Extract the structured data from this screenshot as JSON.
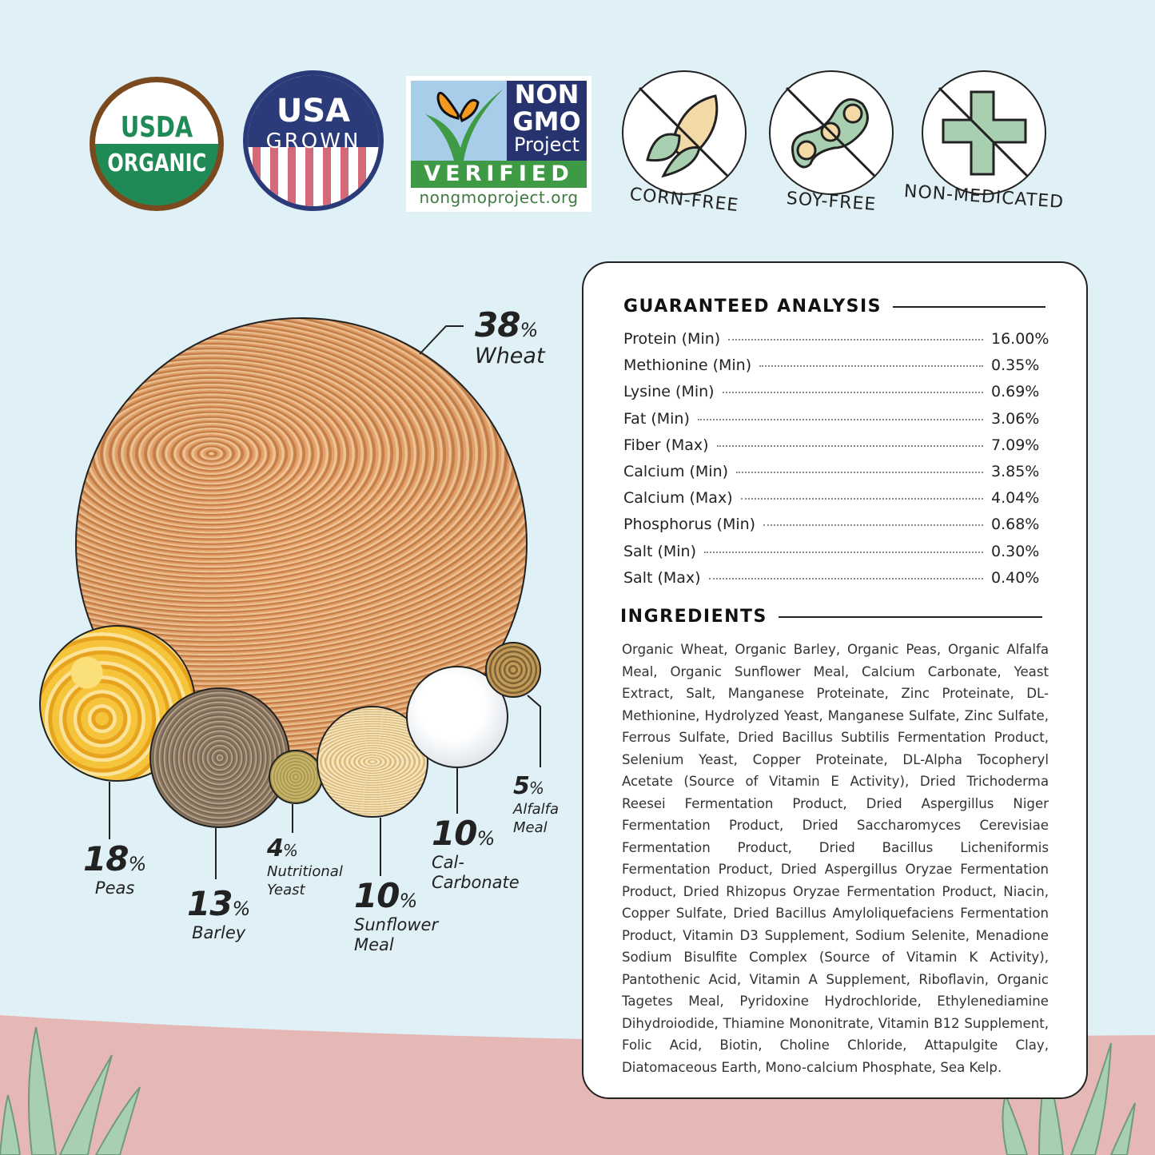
{
  "badges": {
    "usda": {
      "top": "USDA",
      "bottom": "ORGANIC"
    },
    "usa_grown": {
      "top": "USA",
      "bottom": "GROWN"
    },
    "non_gmo": {
      "line1": "NON",
      "line2": "GMO",
      "line3": "Project",
      "verified": "VERIFIED",
      "url": "nongmoproject.org"
    },
    "free_icons": [
      {
        "icon": "corn-icon",
        "label": "CORN-FREE"
      },
      {
        "icon": "soybean-icon",
        "label": "SOY-FREE"
      },
      {
        "icon": "medical-cross-icon",
        "label": "NON-MEDICATED"
      }
    ]
  },
  "composition": [
    {
      "name": "Wheat",
      "percent": "38"
    },
    {
      "name": "Peas",
      "percent": "18"
    },
    {
      "name": "Barley",
      "percent": "13"
    },
    {
      "name": "Nutritional Yeast",
      "percent": "4"
    },
    {
      "name": "Sunflower Meal",
      "percent": "10"
    },
    {
      "name": "Cal-Carbonate",
      "percent": "10"
    },
    {
      "name": "Alfalfa Meal",
      "percent": "5"
    }
  ],
  "percent_sign": "%",
  "analysis": {
    "title": "GUARANTEED ANALYSIS",
    "rows": [
      {
        "label": "Protein (Min)",
        "value": "16.00%"
      },
      {
        "label": "Methionine (Min)",
        "value": "0.35%"
      },
      {
        "label": "Lysine (Min)",
        "value": "0.69%"
      },
      {
        "label": "Fat (Min)",
        "value": "3.06%"
      },
      {
        "label": "Fiber (Max)",
        "value": "7.09%"
      },
      {
        "label": "Calcium (Min)",
        "value": "3.85%"
      },
      {
        "label": "Calcium (Max)",
        "value": "4.04%"
      },
      {
        "label": "Phosphorus (Min)",
        "value": "0.68%"
      },
      {
        "label": "Salt (Min)",
        "value": "0.30%"
      },
      {
        "label": "Salt (Max)",
        "value": "0.40%"
      }
    ]
  },
  "ingredients": {
    "title": "INGREDIENTS",
    "text": "Organic Wheat, Organic Barley, Organic Peas, Organic Alfalfa Meal, Organic Sunflower Meal, Calcium Carbonate, Yeast Extract, Salt, Manganese Proteinate, Zinc Proteinate, DL-Methionine, Hydrolyzed Yeast, Manganese Sulfate, Zinc Sulfate, Ferrous Sulfate, Dried Bacillus Subtilis Fermentation Product, Selenium Yeast, Copper Proteinate, DL-Alpha Tocopheryl Acetate (Source of Vitamin E Activity), Dried Trichoderma Reesei Fermentation Product, Dried Aspergillus Niger Fermentation Product, Dried Saccharomyces Cerevisiae Fermentation Product, Dried Bacillus Licheniformis Fermentation Product, Dried Aspergillus Oryzae Fermentation Product, Dried Rhizopus Oryzae Fermentation Product, Niacin, Copper Sulfate, Dried Bacillus Amyloliquefaciens Fermentation Product, Vitamin D3 Supplement, Sodium Selenite, Menadione Sodium Bisulfite Complex (Source of Vitamin K Activity), Pantothenic Acid, Vitamin A Supplement, Riboflavin, Organic Tagetes Meal, Pyridoxine Hydrochloride, Ethylenediamine Dihydroiodide, Thiamine Mononitrate, Vitamin B12 Supplement, Folic Acid, Biotin, Choline Chloride, Attapulgite Clay, Diatomaceous Earth, Mono-calcium Phosphate, Sea Kelp."
  },
  "colors": {
    "background": "#dff0f6",
    "ground": "#e6b8b5",
    "usda_green": "#1f8a55",
    "usda_brown": "#7a4a1e",
    "usa_navy": "#2b3a78",
    "usa_red": "#d36a7a",
    "nongmo_green": "#3f9a45",
    "nongmo_navy": "#27336f",
    "icon_green": "#a9cfb1"
  }
}
